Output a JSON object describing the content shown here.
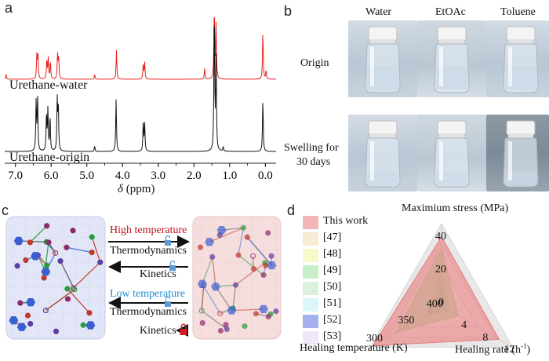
{
  "panels": {
    "a": "a",
    "b": "b",
    "c": "c",
    "d": "d"
  },
  "nmr": {
    "trace_top_label": "Urethane-water",
    "trace_bottom_label": "Urethane-origin",
    "top_color": "#e8211c",
    "bottom_color": "#111111",
    "xlabel_symbol": "δ",
    "xlabel_unit": " (ppm)",
    "xticks": [
      "7.0",
      "6.0",
      "5.0",
      "4.0",
      "3.0",
      "2.0",
      "1.0",
      "0.0"
    ],
    "xrange": [
      7.3,
      -0.3
    ],
    "peaks_top": [
      {
        "x": 7.26,
        "h": 0.1
      },
      {
        "x": 6.4,
        "h": 0.48
      },
      {
        "x": 6.37,
        "h": 0.52
      },
      {
        "x": 6.12,
        "h": 0.4
      },
      {
        "x": 6.08,
        "h": 0.42
      },
      {
        "x": 6.02,
        "h": 0.36
      },
      {
        "x": 5.82,
        "h": 0.5
      },
      {
        "x": 5.79,
        "h": 0.46
      },
      {
        "x": 4.78,
        "h": 0.1
      },
      {
        "x": 4.17,
        "h": 0.6
      },
      {
        "x": 3.42,
        "h": 0.3
      },
      {
        "x": 3.38,
        "h": 0.34
      },
      {
        "x": 1.7,
        "h": 0.22
      },
      {
        "x": 1.43,
        "h": 1.45
      },
      {
        "x": 1.38,
        "h": 1.1
      },
      {
        "x": 0.07,
        "h": 0.98
      },
      {
        "x": -0.02,
        "h": 0.18
      }
    ],
    "peaks_bottom": [
      {
        "x": 6.42,
        "h": 0.55
      },
      {
        "x": 6.38,
        "h": 0.6
      },
      {
        "x": 6.13,
        "h": 0.42
      },
      {
        "x": 6.09,
        "h": 0.46
      },
      {
        "x": 6.03,
        "h": 0.38
      },
      {
        "x": 5.83,
        "h": 0.56
      },
      {
        "x": 5.8,
        "h": 0.52
      },
      {
        "x": 4.78,
        "h": 0.06
      },
      {
        "x": 4.18,
        "h": 0.58
      },
      {
        "x": 3.42,
        "h": 0.32
      },
      {
        "x": 3.38,
        "h": 0.3
      },
      {
        "x": 1.43,
        "h": 1.6
      },
      {
        "x": 1.38,
        "h": 1.0
      },
      {
        "x": 1.18,
        "h": 0.05
      },
      {
        "x": 0.07,
        "h": 0.58
      }
    ]
  },
  "vials": {
    "columns": [
      "Water",
      "EtOAc",
      "Toluene"
    ],
    "rows": [
      "Origin",
      "Swelling for",
      "30 days"
    ]
  },
  "scheme": {
    "high_temperature": "High temperature",
    "low_temperature": "Low temperature",
    "thermo": "Thermodynamics",
    "kinetics": "Kinetics",
    "high_color": "#c0141c",
    "low_color": "#1a8fd0"
  },
  "chart_data": {
    "type": "radar",
    "axes": [
      {
        "name": "Maximium stress (MPa)",
        "ticks": [
          "0",
          "20",
          "40"
        ]
      },
      {
        "name": "Healing rate",
        "unit_base": "(h",
        "unit_sup": "-1",
        "unit_close": ")",
        "ticks": [
          "4",
          "8",
          "12"
        ]
      },
      {
        "name": "Healing temperature (K)",
        "ticks": [
          "400",
          "350",
          "300"
        ]
      }
    ],
    "series": [
      {
        "name": "This work",
        "color": "#e87a7a",
        "values": [
          42,
          10.5,
          290
        ]
      },
      {
        "name": "[47]",
        "color": "#f4d9b0",
        "values": [
          0,
          0,
          0
        ]
      },
      {
        "name": "[48]",
        "color": "#f2f2a0",
        "values": [
          0,
          0,
          0
        ]
      },
      {
        "name": "[49]",
        "color": "#9be39b",
        "values": [
          35,
          3,
          330
        ]
      },
      {
        "name": "[50]",
        "color": "#bfe6bf",
        "values": [
          22,
          1.5,
          385
        ]
      },
      {
        "name": "[51]",
        "color": "#bfeff5",
        "values": [
          15,
          1,
          395
        ]
      },
      {
        "name": "[52]",
        "color": "#5b6fe0",
        "values": [
          12,
          0.8,
          385
        ]
      },
      {
        "name": "[53]",
        "color": "#e3d4f4",
        "values": [
          8,
          0.5,
          400
        ]
      }
    ]
  }
}
